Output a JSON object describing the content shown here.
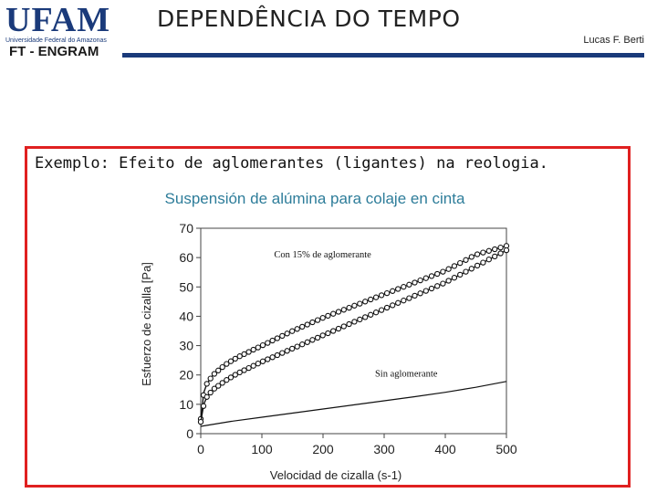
{
  "header": {
    "logo": "UFAM",
    "logo_subtitle": "Universidade Federal do Amazonas",
    "department": "FT - ENGRAM",
    "title": "DEPENDÊNCIA DO TEMPO",
    "author": "Lucas F. Berti"
  },
  "content": {
    "example_text": "Exemplo: Efeito de aglomerantes (ligantes) na reologia."
  },
  "colors": {
    "brand": "#1a3a7a",
    "frame": "#e02020",
    "chart_title": "#2e7d9a"
  },
  "chart_data": {
    "type": "line",
    "title": "Suspensión de alúmina para colaje en cinta",
    "xlabel": "Velocidad de cizalla (s-1)",
    "ylabel": "Esfuerzo de cizalla [Pa]",
    "xlim": [
      0,
      500
    ],
    "ylim": [
      0,
      70
    ],
    "xticks": [
      0,
      100,
      200,
      300,
      400,
      500
    ],
    "yticks": [
      0,
      10,
      20,
      30,
      40,
      50,
      60,
      70
    ],
    "grid": false,
    "annotations": [
      {
        "text": "Con 15% de aglomerante",
        "x": 120,
        "y": 60
      },
      {
        "text": "Sin aglomerante",
        "x": 285,
        "y": 19.5
      }
    ],
    "series": [
      {
        "group": "Con 15% de aglomerante",
        "markers": true,
        "x": [
          0,
          5,
          10,
          20,
          40,
          60,
          80,
          100,
          150,
          200,
          250,
          300,
          350,
          400,
          450,
          500
        ],
        "y": [
          5,
          14,
          17,
          20,
          23.5,
          26,
          28,
          30,
          35,
          39.5,
          43.5,
          47.5,
          51.5,
          55.5,
          61,
          64
        ]
      },
      {
        "group": "Con 15% de aglomerante",
        "markers": true,
        "x": [
          0,
          5,
          10,
          20,
          40,
          60,
          80,
          100,
          150,
          200,
          250,
          300,
          350,
          400,
          450,
          500
        ],
        "y": [
          4,
          10,
          12.5,
          15,
          18,
          20.5,
          22.5,
          24.5,
          29,
          33.5,
          38,
          42.5,
          47,
          51.5,
          57,
          62.5
        ]
      },
      {
        "group": "Sin aglomerante",
        "markers": false,
        "x": [
          0,
          50,
          100,
          150,
          200,
          250,
          300,
          350,
          400,
          450,
          500
        ],
        "y": [
          2.5,
          4.2,
          5.6,
          7,
          8.4,
          9.8,
          11.2,
          12.6,
          14.1,
          15.8,
          17.8
        ]
      }
    ]
  }
}
